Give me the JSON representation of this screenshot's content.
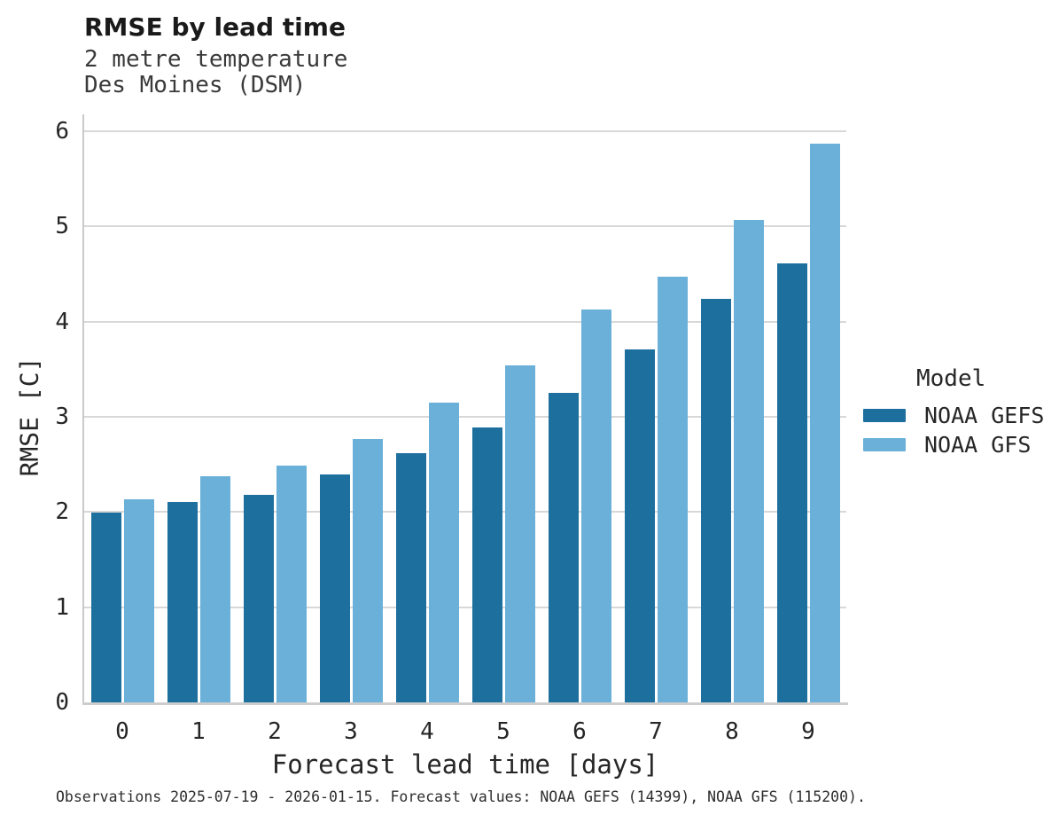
{
  "title": "RMSE by lead time",
  "subtitle_lines": [
    "2 metre temperature",
    "Des Moines (DSM)"
  ],
  "footer_note": "Observations 2025-07-19 - 2026-01-15. Forecast values: NOAA GEFS (14399), NOAA GFS (115200).",
  "chart_data": {
    "type": "bar",
    "title": "RMSE by lead time",
    "subtitle": "2 metre temperature, Des Moines (DSM)",
    "xlabel": "Forecast lead time [days]",
    "ylabel": "RMSE [C]",
    "categories": [
      "0",
      "1",
      "2",
      "3",
      "4",
      "5",
      "6",
      "7",
      "8",
      "9"
    ],
    "series": [
      {
        "name": "NOAA GEFS",
        "color": "#1d6f9e",
        "values": [
          1.99,
          2.11,
          2.18,
          2.39,
          2.62,
          2.89,
          3.25,
          3.71,
          4.24,
          4.61
        ]
      },
      {
        "name": "NOAA GFS",
        "color": "#6ab0d8",
        "values": [
          2.13,
          2.38,
          2.49,
          2.77,
          3.15,
          3.54,
          4.13,
          4.47,
          5.07,
          5.87
        ]
      }
    ],
    "ylim": [
      0,
      6
    ],
    "yticks": [
      "0",
      "1",
      "2",
      "3",
      "4",
      "5",
      "6"
    ],
    "grid": true,
    "legend_title": "Model",
    "legend_position": "right",
    "colors": {
      "grid": "#d8d8d8",
      "spine": "#cccccc"
    }
  }
}
